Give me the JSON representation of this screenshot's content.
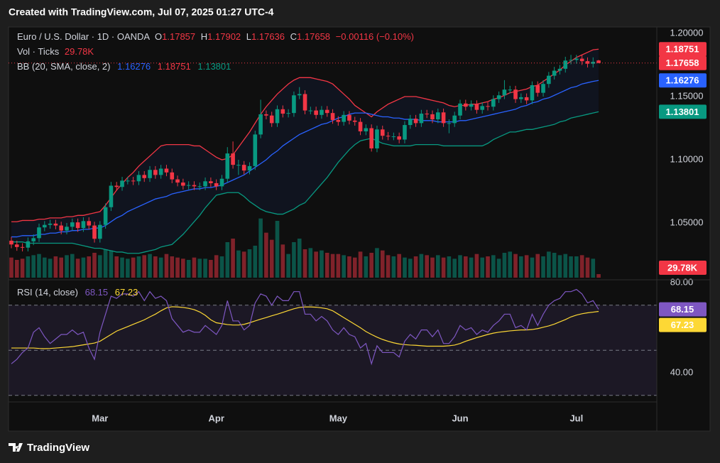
{
  "header": "Created with TradingView.com, Jul 07, 2025 01:27 UTC-4",
  "footer": "TradingView",
  "chart_data": {
    "type": "candlestick",
    "title": "Euro / U.S. Dollar · 1D · OANDA",
    "legend_labels": {
      "open": "O",
      "high": "H",
      "low": "L",
      "close": "C"
    },
    "change_label": "−0.00116 (−0.10%)",
    "up_color": "#089981",
    "down_color": "#f23645",
    "open": [
      1.036,
      1.033,
      1.031,
      1.0305,
      1.0355,
      1.038,
      1.0465,
      1.0485,
      1.0495,
      1.048,
      1.044,
      1.047,
      1.0505,
      1.046,
      1.0515,
      1.048,
      1.0375,
      1.0485,
      1.0625,
      1.0795,
      1.0785,
      1.0835,
      1.0835,
      1.083,
      1.088,
      1.0855,
      1.092,
      1.088,
      1.093,
      1.09,
      1.0845,
      1.082,
      1.0795,
      1.08,
      1.079,
      1.079,
      1.083,
      1.0815,
      1.079,
      1.085,
      1.105,
      1.096,
      1.096,
      1.0915,
      1.095,
      1.12,
      1.136,
      1.135,
      1.129,
      1.14,
      1.1365,
      1.137,
      1.151,
      1.152,
      1.139,
      1.139,
      1.1355,
      1.1395,
      1.137,
      1.1315,
      1.13,
      1.1355,
      1.131,
      1.13,
      1.1225,
      1.125,
      1.109,
      1.124,
      1.119,
      1.1185,
      1.1185,
      1.116,
      1.1275,
      1.1325,
      1.129,
      1.1365,
      1.136,
      1.132,
      1.1375,
      1.129,
      1.129,
      1.135,
      1.1445,
      1.142,
      1.144,
      1.1395,
      1.1425,
      1.142,
      1.148,
      1.151,
      1.1555,
      1.1555,
      1.148,
      1.1495,
      1.147,
      1.159,
      1.153,
      1.16,
      1.1665,
      1.1705,
      1.172,
      1.1785,
      1.179,
      1.18,
      1.178,
      1.176,
      1.17857
    ],
    "high": [
      1.039,
      1.036,
      1.034,
      1.0385,
      1.041,
      1.0495,
      1.0515,
      1.0525,
      1.0525,
      1.051,
      1.05,
      1.0535,
      1.0535,
      1.0545,
      1.0545,
      1.051,
      1.0515,
      1.0655,
      1.0825,
      1.0825,
      1.0865,
      1.0865,
      1.0865,
      1.091,
      1.091,
      1.095,
      1.095,
      1.096,
      1.096,
      1.093,
      1.0875,
      1.085,
      1.083,
      1.083,
      1.082,
      1.086,
      1.086,
      1.0845,
      1.088,
      1.11,
      1.1145,
      1.1,
      1.099,
      1.098,
      1.123,
      1.1475,
      1.139,
      1.138,
      1.143,
      1.143,
      1.14,
      1.154,
      1.1575,
      1.155,
      1.142,
      1.142,
      1.1425,
      1.1425,
      1.14,
      1.1345,
      1.1385,
      1.1385,
      1.134,
      1.133,
      1.128,
      1.128,
      1.127,
      1.127,
      1.122,
      1.1215,
      1.1215,
      1.1305,
      1.1355,
      1.1355,
      1.1395,
      1.1395,
      1.139,
      1.1405,
      1.1405,
      1.132,
      1.138,
      1.1475,
      1.1475,
      1.147,
      1.147,
      1.1455,
      1.1455,
      1.151,
      1.154,
      1.163,
      1.1585,
      1.1585,
      1.1525,
      1.1525,
      1.162,
      1.162,
      1.163,
      1.1695,
      1.1735,
      1.175,
      1.1815,
      1.183,
      1.183,
      1.183,
      1.181,
      1.181,
      1.17902
    ],
    "low": [
      1.03,
      1.028,
      1.0275,
      1.0275,
      1.0325,
      1.035,
      1.0435,
      1.0455,
      1.045,
      1.041,
      1.041,
      1.044,
      1.043,
      1.043,
      1.045,
      1.0345,
      1.0345,
      1.0455,
      1.0595,
      1.0755,
      1.0755,
      1.0805,
      1.08,
      1.08,
      1.0825,
      1.0825,
      1.085,
      1.085,
      1.087,
      1.0815,
      1.079,
      1.0765,
      1.0765,
      1.076,
      1.076,
      1.076,
      1.0785,
      1.076,
      1.076,
      1.082,
      1.093,
      1.088,
      1.0885,
      1.0885,
      1.092,
      1.117,
      1.132,
      1.126,
      1.126,
      1.1335,
      1.1335,
      1.134,
      1.148,
      1.136,
      1.136,
      1.1325,
      1.1325,
      1.134,
      1.1285,
      1.127,
      1.127,
      1.128,
      1.127,
      1.1195,
      1.1195,
      1.1065,
      1.106,
      1.116,
      1.1155,
      1.1155,
      1.113,
      1.113,
      1.1245,
      1.126,
      1.126,
      1.133,
      1.129,
      1.129,
      1.126,
      1.121,
      1.126,
      1.132,
      1.139,
      1.139,
      1.1365,
      1.1365,
      1.139,
      1.139,
      1.145,
      1.148,
      1.1525,
      1.145,
      1.145,
      1.144,
      1.144,
      1.15,
      1.15,
      1.157,
      1.1635,
      1.1675,
      1.169,
      1.1755,
      1.176,
      1.175,
      1.173,
      1.173,
      1.17636
    ],
    "close": [
      1.033,
      1.031,
      1.0305,
      1.0355,
      1.038,
      1.0465,
      1.0485,
      1.0495,
      1.048,
      1.044,
      1.047,
      1.0505,
      1.046,
      1.0515,
      1.048,
      1.0375,
      1.0485,
      1.0625,
      1.0795,
      1.0785,
      1.0835,
      1.0835,
      1.083,
      1.088,
      1.0855,
      1.092,
      1.088,
      1.093,
      1.09,
      1.0845,
      1.082,
      1.0795,
      1.08,
      1.079,
      1.079,
      1.083,
      1.0815,
      1.079,
      1.085,
      1.105,
      1.096,
      1.096,
      1.0915,
      1.095,
      1.12,
      1.136,
      1.135,
      1.129,
      1.14,
      1.1365,
      1.137,
      1.151,
      1.152,
      1.139,
      1.139,
      1.1355,
      1.1395,
      1.137,
      1.1315,
      1.13,
      1.1355,
      1.131,
      1.13,
      1.1225,
      1.125,
      1.109,
      1.124,
      1.119,
      1.1185,
      1.1185,
      1.116,
      1.1275,
      1.1325,
      1.129,
      1.1365,
      1.136,
      1.132,
      1.1375,
      1.129,
      1.129,
      1.135,
      1.1445,
      1.142,
      1.144,
      1.1395,
      1.1425,
      1.142,
      1.148,
      1.151,
      1.1555,
      1.1555,
      1.148,
      1.1495,
      1.147,
      1.159,
      1.153,
      1.16,
      1.1665,
      1.1705,
      1.172,
      1.1785,
      1.179,
      1.18,
      1.178,
      1.176,
      1.1775,
      1.17658
    ],
    "xlim": [
      -0.51,
      116.5
    ],
    "xticks": [
      {
        "value": 16,
        "label": "Mar"
      },
      {
        "value": 37,
        "label": "Apr"
      },
      {
        "value": 59,
        "label": "May"
      },
      {
        "value": 81,
        "label": "Jun"
      },
      {
        "value": 102,
        "label": "Jul"
      }
    ],
    "ylim": [
      1.00562,
      1.20506
    ],
    "yticks": [
      {
        "value": 1.2,
        "label": "1.20000"
      },
      {
        "value": 1.15,
        "label": "1.15000"
      },
      {
        "value": 1.1,
        "label": "1.10000"
      },
      {
        "value": 1.05,
        "label": "1.05000"
      }
    ],
    "volume": {
      "name": "Vol · Ticks",
      "last_label": "29.78K",
      "ylim": [
        0,
        600000
      ],
      "values": [
        170000,
        150000,
        160000,
        180000,
        190000,
        200000,
        170000,
        160000,
        180000,
        170000,
        190000,
        200000,
        160000,
        170000,
        180000,
        210000,
        190000,
        240000,
        230000,
        180000,
        170000,
        160000,
        170000,
        180000,
        190000,
        200000,
        180000,
        170000,
        200000,
        180000,
        170000,
        160000,
        150000,
        170000,
        160000,
        160000,
        150000,
        190000,
        180000,
        300000,
        330000,
        230000,
        220000,
        240000,
        270000,
        500000,
        380000,
        320000,
        480000,
        280000,
        200000,
        300000,
        330000,
        240000,
        250000,
        220000,
        230000,
        210000,
        200000,
        200000,
        190000,
        180000,
        170000,
        220000,
        180000,
        210000,
        250000,
        230000,
        190000,
        180000,
        200000,
        170000,
        160000,
        180000,
        200000,
        190000,
        170000,
        190000,
        170000,
        180000,
        160000,
        190000,
        180000,
        170000,
        200000,
        170000,
        180000,
        190000,
        160000,
        210000,
        220000,
        200000,
        180000,
        190000,
        170000,
        200000,
        180000,
        220000,
        210000,
        190000,
        200000,
        180000,
        180000,
        190000,
        170000,
        160000,
        29780
      ]
    },
    "bollinger": {
      "name": "BB (20, SMA, close, 2)",
      "fill_color": "#2962ff",
      "basis": {
        "color": "#2962ff",
        "values": [
          1.039,
          1.039,
          1.04,
          1.04,
          1.04,
          1.041,
          1.041,
          1.042,
          1.042,
          1.043,
          1.043,
          1.044,
          1.044,
          1.045,
          1.045,
          1.046,
          1.046,
          1.048,
          1.051,
          1.054,
          1.056,
          1.059,
          1.061,
          1.063,
          1.065,
          1.067,
          1.069,
          1.07,
          1.071,
          1.073,
          1.074,
          1.075,
          1.076,
          1.077,
          1.077,
          1.078,
          1.078,
          1.079,
          1.08,
          1.082,
          1.084,
          1.086,
          1.088,
          1.091,
          1.094,
          1.097,
          1.1,
          1.104,
          1.107,
          1.111,
          1.114,
          1.117,
          1.12,
          1.122,
          1.124,
          1.126,
          1.128,
          1.129,
          1.131,
          1.133,
          1.134,
          1.136,
          1.137,
          1.137,
          1.137,
          1.136,
          1.135,
          1.134,
          1.134,
          1.133,
          1.133,
          1.132,
          1.132,
          1.132,
          1.131,
          1.131,
          1.131,
          1.13,
          1.13,
          1.13,
          1.13,
          1.131,
          1.131,
          1.132,
          1.133,
          1.134,
          1.135,
          1.136,
          1.137,
          1.138,
          1.139,
          1.14,
          1.142,
          1.143,
          1.145,
          1.146,
          1.148,
          1.149,
          1.151,
          1.153,
          1.155,
          1.157,
          1.158,
          1.16,
          1.161,
          1.162,
          1.16276
        ]
      },
      "upper": {
        "color": "#f23645",
        "values": [
          1.051,
          1.051,
          1.052,
          1.052,
          1.052,
          1.053,
          1.053,
          1.054,
          1.054,
          1.054,
          1.055,
          1.055,
          1.056,
          1.056,
          1.057,
          1.058,
          1.059,
          1.064,
          1.07,
          1.076,
          1.081,
          1.086,
          1.09,
          1.095,
          1.099,
          1.103,
          1.107,
          1.111,
          1.112,
          1.112,
          1.112,
          1.112,
          1.112,
          1.111,
          1.111,
          1.108,
          1.105,
          1.102,
          1.1,
          1.101,
          1.104,
          1.11,
          1.116,
          1.122,
          1.129,
          1.136,
          1.142,
          1.147,
          1.152,
          1.156,
          1.16,
          1.163,
          1.165,
          1.165,
          1.165,
          1.164,
          1.163,
          1.162,
          1.16,
          1.156,
          1.152,
          1.148,
          1.143,
          1.14,
          1.137,
          1.134,
          1.138,
          1.141,
          1.144,
          1.146,
          1.148,
          1.15,
          1.15,
          1.15,
          1.149,
          1.148,
          1.147,
          1.146,
          1.145,
          1.143,
          1.142,
          1.143,
          1.143,
          1.144,
          1.144,
          1.145,
          1.146,
          1.148,
          1.149,
          1.151,
          1.153,
          1.154,
          1.155,
          1.156,
          1.158,
          1.159,
          1.162,
          1.165,
          1.168,
          1.171,
          1.175,
          1.178,
          1.181,
          1.183,
          1.185,
          1.187,
          1.18751
        ]
      },
      "lower": {
        "color": "#089981",
        "values": [
          1.035,
          1.035,
          1.035,
          1.034,
          1.034,
          1.034,
          1.034,
          1.034,
          1.034,
          1.034,
          1.034,
          1.034,
          1.033,
          1.032,
          1.031,
          1.03,
          1.03,
          1.029,
          1.028,
          1.027,
          1.027,
          1.026,
          1.026,
          1.026,
          1.027,
          1.028,
          1.029,
          1.031,
          1.032,
          1.033,
          1.037,
          1.041,
          1.046,
          1.051,
          1.056,
          1.062,
          1.067,
          1.072,
          1.073,
          1.074,
          1.074,
          1.074,
          1.071,
          1.067,
          1.064,
          1.061,
          1.059,
          1.058,
          1.057,
          1.057,
          1.059,
          1.061,
          1.064,
          1.066,
          1.071,
          1.076,
          1.081,
          1.086,
          1.092,
          1.098,
          1.103,
          1.108,
          1.112,
          1.115,
          1.116,
          1.117,
          1.115,
          1.113,
          1.112,
          1.111,
          1.111,
          1.111,
          1.111,
          1.112,
          1.112,
          1.112,
          1.112,
          1.112,
          1.111,
          1.111,
          1.111,
          1.111,
          1.111,
          1.111,
          1.111,
          1.111,
          1.113,
          1.116,
          1.118,
          1.12,
          1.122,
          1.122,
          1.123,
          1.124,
          1.124,
          1.125,
          1.126,
          1.127,
          1.128,
          1.13,
          1.131,
          1.133,
          1.134,
          1.135,
          1.136,
          1.137,
          1.13801
        ]
      }
    },
    "rsi": {
      "name": "RSI (14, close)",
      "ylim": [
        27.4,
        80.94
      ],
      "yticks": [
        {
          "value": 80,
          "label": "80.00"
        },
        {
          "value": 40,
          "label": "40.00"
        }
      ],
      "levels": [
        30,
        50,
        70
      ],
      "band_color": "#7e57c2",
      "rsi": {
        "color": "#7e57c2",
        "values": [
          44,
          46,
          49,
          51,
          58,
          60,
          56,
          53,
          55,
          57,
          57,
          59,
          57,
          58,
          51,
          46,
          58,
          66,
          74,
          73,
          75,
          75,
          74,
          76,
          72,
          76,
          73,
          74,
          72,
          64,
          61,
          58,
          59,
          58,
          58,
          61,
          59,
          57,
          61,
          72,
          63,
          63,
          59,
          61,
          71,
          75,
          74,
          70,
          74,
          72,
          72,
          76,
          76,
          66,
          66,
          63,
          65,
          63,
          59,
          57,
          60,
          57,
          56,
          51,
          53,
          44,
          52,
          49,
          49,
          49,
          47,
          54,
          57,
          55,
          59,
          59,
          56,
          59,
          53,
          53,
          56,
          61,
          59,
          60,
          57,
          59,
          58,
          61,
          63,
          66,
          66,
          60,
          61,
          59,
          66,
          61,
          66,
          70,
          72,
          73,
          76,
          76,
          77,
          75,
          71,
          72,
          68.15
        ]
      },
      "ma": {
        "color": "#fdd835",
        "values": [
          51,
          51,
          51,
          51,
          51,
          50.8,
          50.7,
          50.8,
          51,
          51.2,
          51.4,
          51.6,
          52,
          52.4,
          52.8,
          53.2,
          54,
          55.5,
          57,
          58.5,
          59.5,
          60.5,
          61.5,
          62.5,
          63.5,
          64.8,
          66,
          67.5,
          68.8,
          69.3,
          69.2,
          69,
          68.6,
          68,
          67,
          65.5,
          63.5,
          62.2,
          61.8,
          61.4,
          61.2,
          61.2,
          61.5,
          62.2,
          63,
          63.8,
          64.5,
          65.3,
          66,
          66.8,
          67.6,
          68.4,
          69,
          69.2,
          69.2,
          69.1,
          68.8,
          68.4,
          67.5,
          66,
          64.5,
          63,
          61.5,
          60,
          58.3,
          57,
          55.8,
          54.8,
          54,
          53.3,
          52.8,
          52.5,
          52.3,
          52.2,
          52,
          51.8,
          51.8,
          51.8,
          51.8,
          52,
          52.3,
          53,
          54,
          54.8,
          55.6,
          56.3,
          57,
          57.6,
          58,
          58.3,
          58.6,
          58.8,
          59,
          59,
          59.2,
          59.6,
          60.2,
          60.8,
          61.6,
          62.6,
          63.6,
          64.8,
          65.6,
          66.2,
          66.6,
          66.9,
          67.23
        ]
      }
    }
  }
}
